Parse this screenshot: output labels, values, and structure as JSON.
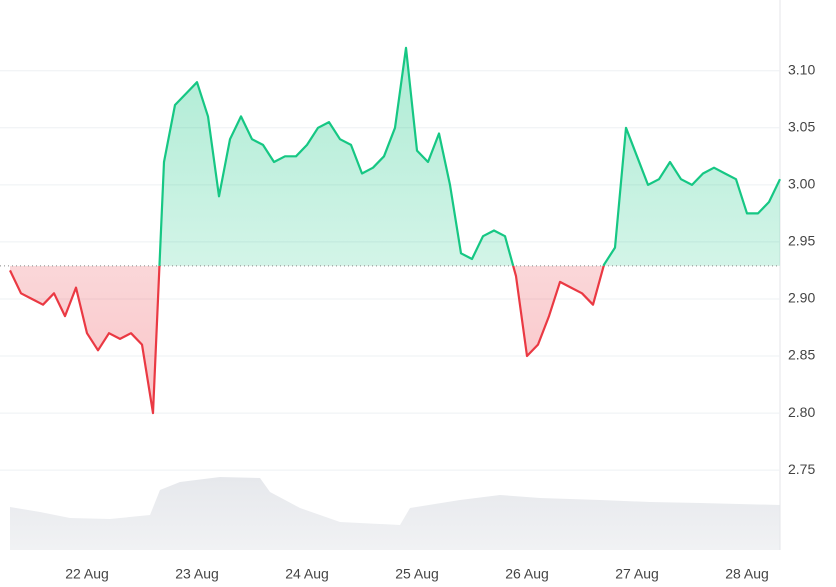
{
  "chart_data": {
    "type": "line",
    "categories": [
      null,
      null,
      null,
      null,
      null,
      null,
      null,
      "22 Aug",
      null,
      null,
      null,
      null,
      null,
      null,
      null,
      null,
      null,
      "23 Aug",
      null,
      null,
      null,
      null,
      null,
      null,
      null,
      null,
      null,
      "24 Aug",
      null,
      null,
      null,
      null,
      null,
      null,
      null,
      null,
      null,
      "25 Aug",
      null,
      null,
      null,
      null,
      null,
      null,
      null,
      null,
      null,
      "26 Aug",
      null,
      null,
      null,
      null,
      null,
      null,
      null,
      null,
      null,
      "27 Aug",
      null,
      null,
      null,
      null,
      null,
      null,
      null,
      null,
      null,
      "28 Aug",
      null,
      null,
      null
    ],
    "values": [
      2.925,
      2.905,
      2.9,
      2.895,
      2.905,
      2.885,
      2.91,
      2.87,
      2.855,
      2.87,
      2.865,
      2.87,
      2.86,
      2.8,
      3.02,
      3.07,
      3.08,
      3.09,
      3.06,
      2.99,
      3.04,
      3.06,
      3.04,
      3.035,
      3.02,
      3.025,
      3.025,
      3.035,
      3.05,
      3.055,
      3.04,
      3.035,
      3.01,
      3.015,
      3.025,
      3.05,
      3.12,
      3.03,
      3.02,
      3.045,
      3.0,
      2.94,
      2.935,
      2.955,
      2.96,
      2.955,
      2.92,
      2.85,
      2.86,
      2.885,
      2.915,
      2.91,
      2.905,
      2.895,
      2.93,
      2.945,
      3.05,
      3.025,
      3.0,
      3.005,
      3.02,
      3.005,
      3.0,
      3.01,
      3.015,
      3.01,
      3.005,
      2.975,
      2.975,
      2.985,
      3.005
    ],
    "baseline": 2.929,
    "up_color": "#16c784",
    "down_color": "#ea3943",
    "ylim": [
      2.68,
      3.155
    ],
    "yticks": [
      {
        "value": 2.75,
        "label": "2.75"
      },
      {
        "value": 2.8,
        "label": "2.80"
      },
      {
        "value": 2.85,
        "label": "2.85"
      },
      {
        "value": 2.9,
        "label": "2.90"
      },
      {
        "value": 2.95,
        "label": "2.95"
      },
      {
        "value": 3.0,
        "label": "3.00"
      },
      {
        "value": 3.05,
        "label": "3.05"
      },
      {
        "value": 3.1,
        "label": "3.10"
      }
    ],
    "grid": true
  }
}
